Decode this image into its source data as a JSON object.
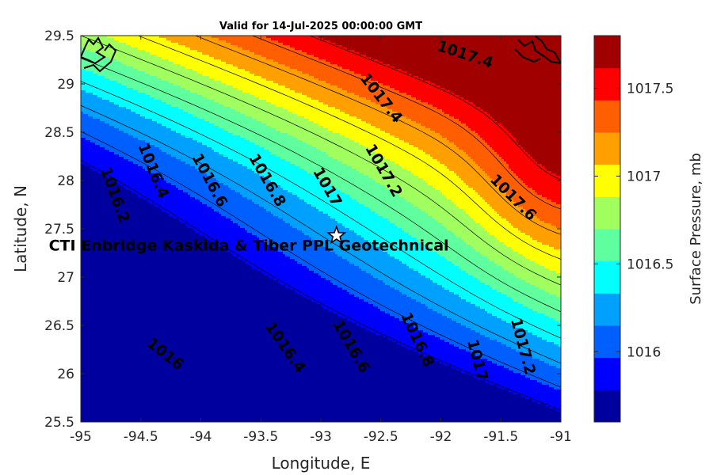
{
  "chart_data": {
    "type": "contour",
    "title": "Valid for 14-Jul-2025 00:00:00 GMT",
    "xlabel": "Longitude, E",
    "ylabel": "Latitude, N",
    "xlim": [
      -95,
      -91
    ],
    "ylim": [
      25.5,
      29.5
    ],
    "xticks": [
      -95,
      -94.5,
      -94,
      -93.5,
      -93,
      -92.5,
      -92,
      -91.5,
      -91
    ],
    "yticks": [
      25.5,
      26,
      26.5,
      27,
      27.5,
      28,
      28.5,
      29,
      29.5
    ],
    "xtick_labels": [
      "-95",
      "-94.5",
      "-94",
      "-93.5",
      "-93",
      "-92.5",
      "-92",
      "-91.5",
      "-91"
    ],
    "ytick_labels": [
      "25.5",
      "26",
      "26.5",
      "27",
      "27.5",
      "28",
      "28.5",
      "29",
      "29.5"
    ],
    "colorbar": {
      "label": "Surface Pressure, mb",
      "range": [
        1015.6,
        1017.8
      ],
      "ticks": [
        1016,
        1016.5,
        1017,
        1017.5
      ],
      "tick_labels": [
        "1016",
        "1016.5",
        "1017",
        "1017.5"
      ],
      "colors": [
        "#00009f",
        "#0000ff",
        "#005fff",
        "#00a0ff",
        "#00ffff",
        "#5fffa0",
        "#a0ff5f",
        "#ffff00",
        "#ffa000",
        "#ff5f00",
        "#ff0000",
        "#a00000"
      ]
    },
    "contour_levels": [
      1015.8,
      1016,
      1016.2,
      1016.4,
      1016.6,
      1016.8,
      1017,
      1017.2,
      1017.4,
      1017.6
    ],
    "contour_labels": [
      {
        "text": "1016.2",
        "lon": -94.72,
        "lat": 27.85,
        "angle": 70
      },
      {
        "text": "1016.4",
        "lon": -94.4,
        "lat": 28.1,
        "angle": 68
      },
      {
        "text": "1016.6",
        "lon": -93.93,
        "lat": 28.0,
        "angle": 62
      },
      {
        "text": "1016.8",
        "lon": -93.45,
        "lat": 28.0,
        "angle": 60
      },
      {
        "text": "1017",
        "lon": -92.95,
        "lat": 27.93,
        "angle": 60
      },
      {
        "text": "1017.2",
        "lon": -92.48,
        "lat": 28.1,
        "angle": 60
      },
      {
        "text": "1017.4",
        "lon": -92.5,
        "lat": 28.85,
        "angle": 52
      },
      {
        "text": "1017.4",
        "lon": -91.8,
        "lat": 29.3,
        "angle": 18
      },
      {
        "text": "1017.6",
        "lon": -91.4,
        "lat": 27.82,
        "angle": 45
      },
      {
        "text": "1016",
        "lon": -94.3,
        "lat": 26.2,
        "angle": 38
      },
      {
        "text": "1016.4",
        "lon": -93.3,
        "lat": 26.27,
        "angle": 55
      },
      {
        "text": "1016.6",
        "lon": -92.75,
        "lat": 26.28,
        "angle": 60
      },
      {
        "text": "1016.8",
        "lon": -92.2,
        "lat": 26.35,
        "angle": 65
      },
      {
        "text": "1017",
        "lon": -91.7,
        "lat": 26.14,
        "angle": 75
      },
      {
        "text": "1017.2",
        "lon": -91.32,
        "lat": 26.28,
        "angle": 75
      }
    ],
    "marker": {
      "symbol": "star",
      "lon": -92.87,
      "lat": 27.43
    },
    "annotation": {
      "text": "CTI Enbridge  Kaskida & Tiber PPL Geotechnical",
      "lon": -93.6,
      "lat": 27.32
    }
  }
}
